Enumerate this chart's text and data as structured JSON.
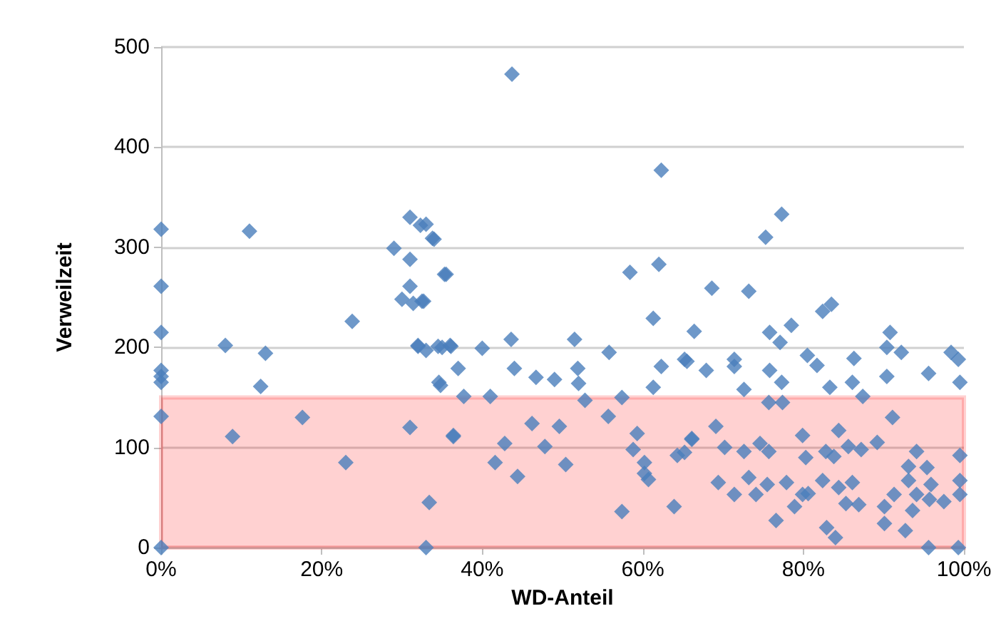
{
  "chart_data": {
    "type": "scatter",
    "xlabel": "WD-Anteil",
    "ylabel": "Verweilzeit",
    "marker": "diamond",
    "grid": "y",
    "xlim": [
      0,
      100
    ],
    "xticks": [
      {
        "value": 0,
        "label": "0%"
      },
      {
        "value": 20,
        "label": "20%"
      },
      {
        "value": 40,
        "label": "40%"
      },
      {
        "value": 60,
        "label": "60%"
      },
      {
        "value": 80,
        "label": "80%"
      },
      {
        "value": 100,
        "label": "100%"
      }
    ],
    "ylim": [
      0,
      500
    ],
    "yticks": [
      0,
      100,
      200,
      300,
      400,
      500
    ],
    "bands": [
      {
        "axis": "y",
        "from": 0,
        "to": 150,
        "color": "#ff0000"
      }
    ],
    "series": [
      {
        "color": "#4a7ebb",
        "x": [
          0,
          0,
          0,
          0,
          0,
          0,
          0,
          0,
          11,
          8,
          13,
          12.4,
          8.9,
          17.6,
          23.8,
          23,
          29,
          31,
          31,
          33,
          34,
          30,
          31,
          35.5,
          32,
          33,
          35,
          36,
          34.6,
          31.4,
          32.7,
          31,
          33.4,
          33,
          36.4,
          43.7,
          62.3,
          32.3,
          33.8,
          35.3,
          32.5,
          58.4,
          62,
          61.3,
          66.4,
          32,
          34.5,
          36.1,
          40,
          43.6,
          51.5,
          55.8,
          65.2,
          62.3,
          37,
          44,
          46.7,
          49,
          51.9,
          52,
          34.8,
          61.3,
          37.7,
          41,
          52.8,
          57.4,
          46.2,
          49.6,
          55.7,
          36.4,
          42.8,
          47.8,
          59.3,
          58.8,
          41.6,
          50.4,
          60.2,
          60.2,
          60.7,
          44.4,
          64.3,
          66.1,
          65.2,
          57.4,
          63.9,
          77.3,
          75.3,
          68.6,
          73.2,
          83.5,
          82.4,
          75.8,
          78.5,
          77.1,
          90.8,
          90.4,
          92.2,
          98.4,
          99.3,
          65.5,
          71.4,
          71.4,
          67.9,
          80.5,
          81.7,
          86.3,
          75.8,
          90.4,
          95.6,
          99.5,
          77.3,
          72.6,
          83.3,
          86.1,
          87.4,
          75.7,
          77.4,
          69.1,
          91.1,
          66.1,
          70.2,
          72.6,
          74.6,
          75.7,
          79.9,
          84.4,
          82.8,
          85.6,
          87.2,
          89.2,
          94.1,
          99.5,
          80.3,
          83.8,
          69.4,
          73.2,
          75.5,
          77.9,
          71.4,
          74.1,
          79.9,
          82.4,
          84.4,
          86.1,
          85.3,
          86.9,
          78.9,
          80.6,
          93.1,
          95.4,
          99.5,
          91.3,
          93.1,
          94.1,
          95.9,
          95.7,
          97.5,
          99.5,
          90.1,
          93.6,
          76.6,
          82.9,
          84,
          90.1,
          92.7,
          95.6,
          99.3
        ],
        "values": [
          318,
          261,
          215,
          177,
          171,
          165,
          131,
          0,
          316,
          202,
          194,
          161,
          111,
          130,
          226,
          85,
          299,
          330,
          288,
          323,
          308,
          248,
          261,
          273,
          202,
          197,
          200,
          202,
          165,
          244,
          246,
          120,
          45,
          0,
          112,
          473,
          377,
          322,
          309,
          273,
          246,
          275,
          283,
          229,
          216,
          201,
          201,
          201,
          199,
          208,
          208,
          195,
          188,
          181,
          179,
          179,
          170,
          168,
          179,
          164,
          162,
          160,
          151,
          151,
          147,
          150,
          124,
          121,
          131,
          111,
          104,
          101,
          114,
          98,
          85,
          83,
          85,
          74,
          68,
          71,
          92,
          109,
          95,
          36,
          41,
          333,
          310,
          259,
          256,
          243,
          236,
          215,
          222,
          205,
          215,
          200,
          195,
          195,
          188,
          186,
          188,
          181,
          177,
          192,
          182,
          189,
          177,
          171,
          174,
          165,
          165,
          158,
          160,
          165,
          151,
          145,
          145,
          121,
          130,
          108,
          100,
          96,
          104,
          96,
          112,
          117,
          96,
          101,
          98,
          105,
          96,
          92,
          90,
          91,
          65,
          70,
          63,
          65,
          53,
          53,
          53,
          67,
          60,
          65,
          44,
          43,
          41,
          54,
          81,
          80,
          67,
          53,
          67,
          53,
          63,
          48,
          46,
          53,
          41,
          37,
          27,
          20,
          10,
          24,
          17,
          0,
          0
        ]
      }
    ]
  }
}
